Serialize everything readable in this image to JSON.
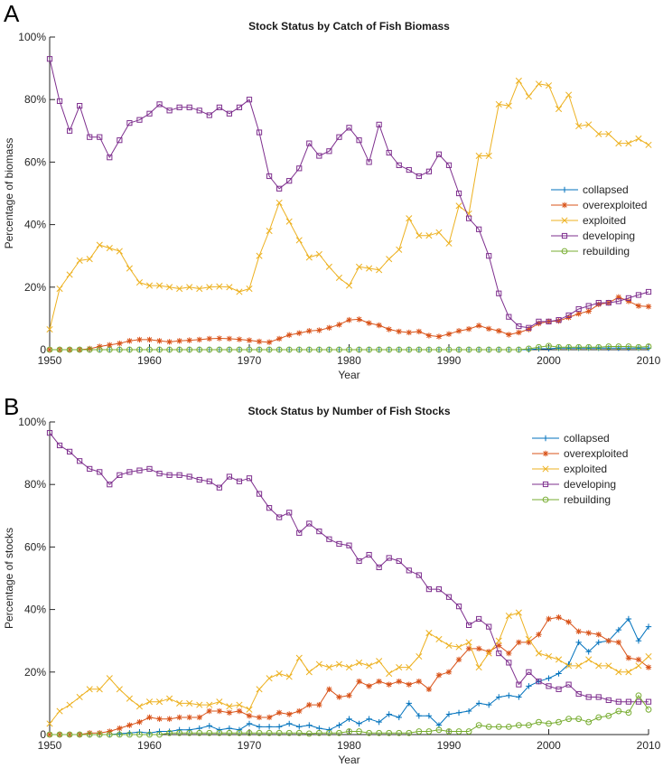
{
  "panel_letters": [
    "A",
    "B"
  ],
  "chart_data": [
    {
      "type": "line",
      "title": "Stock Status by Catch of Fish Biomass",
      "xlabel": "Year",
      "ylabel": "Percentage of biomass",
      "xlim": [
        1950,
        2010
      ],
      "ylim": [
        0,
        100
      ],
      "x_ticks": [
        "1950",
        "1960",
        "1970",
        "1980",
        "1990",
        "2000",
        "2010"
      ],
      "y_ticks": [
        "0",
        "20%",
        "40%",
        "60%",
        "80%",
        "100%"
      ],
      "legend_position": "right-middle",
      "x": [
        1950,
        1951,
        1952,
        1953,
        1954,
        1955,
        1956,
        1957,
        1958,
        1959,
        1960,
        1961,
        1962,
        1963,
        1964,
        1965,
        1966,
        1967,
        1968,
        1969,
        1970,
        1971,
        1972,
        1973,
        1974,
        1975,
        1976,
        1977,
        1978,
        1979,
        1980,
        1981,
        1982,
        1983,
        1984,
        1985,
        1986,
        1987,
        1988,
        1989,
        1990,
        1991,
        1992,
        1993,
        1994,
        1995,
        1996,
        1997,
        1998,
        1999,
        2000,
        2001,
        2002,
        2003,
        2004,
        2005,
        2006,
        2007,
        2008,
        2009,
        2010
      ],
      "series": [
        {
          "name": "collapsed",
          "color": "#0072BD",
          "marker": "plus",
          "values": [
            0,
            0,
            0,
            0,
            0,
            0,
            0,
            0,
            0,
            0,
            0,
            0,
            0,
            0,
            0,
            0,
            0,
            0,
            0,
            0,
            0,
            0,
            0,
            0,
            0,
            0,
            0,
            0,
            0,
            0,
            0,
            0,
            0,
            0,
            0,
            0,
            0,
            0,
            0,
            0,
            0,
            0,
            0,
            0,
            0,
            0,
            0,
            0,
            0,
            0.3,
            0.3,
            0.5,
            0.5,
            0.5,
            0.5,
            0.5,
            0.5,
            0.5,
            0.5,
            0.5,
            0.5
          ]
        },
        {
          "name": "overexploited",
          "color": "#D95319",
          "marker": "star",
          "values": [
            0,
            0,
            0,
            0,
            0.3,
            1,
            1.5,
            2,
            2.8,
            3.2,
            3.2,
            2.8,
            2.5,
            2.8,
            3,
            3.2,
            3.5,
            3.6,
            3.5,
            3.3,
            3,
            2.6,
            2.4,
            3.5,
            4.7,
            5.3,
            6,
            6.2,
            7,
            8,
            9.5,
            9.7,
            8.5,
            7.8,
            6.5,
            5.8,
            5.5,
            5.8,
            4.5,
            4.2,
            5,
            6,
            6.6,
            7.7,
            6.7,
            6,
            4.8,
            5.5,
            6.5,
            8.4,
            9,
            9.2,
            10.3,
            11.5,
            12.3,
            14.5,
            15,
            16.8,
            15.5,
            14,
            13.8
          ]
        },
        {
          "name": "exploited",
          "color": "#EDB120",
          "marker": "cross",
          "values": [
            6.5,
            19.5,
            24,
            28.5,
            29,
            33.5,
            32.5,
            31.5,
            26,
            21.5,
            20.5,
            20.5,
            20,
            19.5,
            20,
            19.5,
            20,
            20.2,
            20,
            18.5,
            19.5,
            30,
            38,
            47,
            41,
            35,
            29.5,
            30.5,
            26.5,
            23,
            20.5,
            26.5,
            26,
            25.5,
            29,
            32,
            42,
            36.5,
            36.5,
            37.5,
            34,
            46,
            43.5,
            62,
            62,
            78.5,
            78,
            86,
            81,
            85,
            84.5,
            77,
            81.5,
            71.5,
            72,
            69,
            69,
            66,
            66,
            67.5,
            65.5
          ]
        },
        {
          "name": "developing",
          "color": "#7E2F8E",
          "marker": "square",
          "values": [
            93,
            79.5,
            70,
            78,
            68,
            68,
            61.5,
            67,
            72.5,
            73.5,
            75.5,
            78.5,
            76.5,
            77.5,
            77.5,
            76.5,
            75,
            77.5,
            75.5,
            77.5,
            80,
            69.5,
            55.5,
            51.5,
            54,
            58,
            66,
            62,
            63.5,
            68,
            71,
            67,
            60,
            72,
            63,
            59,
            57.5,
            55.5,
            57,
            62.5,
            59,
            50,
            42,
            38.5,
            30,
            18,
            10.5,
            7.5,
            7,
            9,
            9,
            9.5,
            11,
            13,
            14,
            15,
            15,
            15.5,
            16.5,
            17.5,
            18.5
          ]
        },
        {
          "name": "rebuilding",
          "color": "#77AC30",
          "marker": "circle",
          "values": [
            0,
            0,
            0,
            0,
            0,
            0,
            0,
            0,
            0,
            0,
            0,
            0,
            0,
            0,
            0,
            0,
            0,
            0,
            0,
            0,
            0,
            0,
            0,
            0,
            0,
            0,
            0,
            0,
            0,
            0,
            0,
            0,
            0,
            0,
            0,
            0,
            0,
            0,
            0,
            0,
            0,
            0,
            0,
            0,
            0,
            0,
            0,
            0,
            0.3,
            0.8,
            1.2,
            0.8,
            0.8,
            0.8,
            0.8,
            0.8,
            1,
            1,
            1,
            0.8,
            1
          ]
        }
      ]
    },
    {
      "type": "line",
      "title": "Stock Status by Number of Fish Stocks",
      "xlabel": "Year",
      "ylabel": "Percentage of stocks",
      "xlim": [
        1950,
        2010
      ],
      "ylim": [
        0,
        100
      ],
      "x_ticks": [
        "1950",
        "1960",
        "1970",
        "1980",
        "1990",
        "2000",
        "2010"
      ],
      "y_ticks": [
        "0",
        "20%",
        "40%",
        "60%",
        "80%",
        "100%"
      ],
      "legend_position": "top-right",
      "x": [
        1950,
        1951,
        1952,
        1953,
        1954,
        1955,
        1956,
        1957,
        1958,
        1959,
        1960,
        1961,
        1962,
        1963,
        1964,
        1965,
        1966,
        1967,
        1968,
        1969,
        1970,
        1971,
        1972,
        1973,
        1974,
        1975,
        1976,
        1977,
        1978,
        1979,
        1980,
        1981,
        1982,
        1983,
        1984,
        1985,
        1986,
        1987,
        1988,
        1989,
        1990,
        1991,
        1992,
        1993,
        1994,
        1995,
        1996,
        1997,
        1998,
        1999,
        2000,
        2001,
        2002,
        2003,
        2004,
        2005,
        2006,
        2007,
        2008,
        2009,
        2010
      ],
      "series": [
        {
          "name": "collapsed",
          "color": "#0072BD",
          "marker": "plus",
          "values": [
            0,
            0,
            0,
            0,
            0,
            0,
            0,
            0.3,
            0.5,
            0.8,
            0.5,
            1,
            1,
            1.5,
            1.5,
            2,
            2.8,
            1.5,
            2,
            1.5,
            3.5,
            2.5,
            2.5,
            2.5,
            3.5,
            2.5,
            3,
            2,
            1.5,
            3,
            5,
            3.5,
            5,
            4,
            6.5,
            5.5,
            10,
            6,
            6,
            3,
            6.5,
            7,
            7.5,
            10,
            9.5,
            12,
            12.5,
            12,
            15.5,
            17,
            18,
            19.5,
            22.5,
            29.5,
            26.5,
            29.5,
            30,
            33.5,
            37,
            30,
            34.5
          ]
        },
        {
          "name": "overexploited",
          "color": "#D95319",
          "marker": "star",
          "values": [
            0,
            0,
            0,
            0,
            0.5,
            0.5,
            1,
            2,
            3,
            4,
            5.5,
            5,
            5,
            5.5,
            5.5,
            5.5,
            7.5,
            7.5,
            7,
            7.5,
            6,
            5.5,
            5.5,
            7,
            6.5,
            7.5,
            9.5,
            9.5,
            14.5,
            12,
            12.5,
            17,
            15.5,
            17,
            16,
            17,
            16,
            17,
            14.5,
            19,
            20,
            24,
            27.5,
            27.5,
            26.5,
            28.5,
            26,
            29.5,
            29.5,
            32,
            37,
            37.5,
            36,
            33,
            32.5,
            32,
            30,
            29.5,
            24.5,
            24,
            21.5
          ]
        },
        {
          "name": "exploited",
          "color": "#EDB120",
          "marker": "cross",
          "values": [
            3.5,
            7.5,
            9.5,
            12,
            14.5,
            14.5,
            18,
            14.5,
            11.5,
            9,
            10.5,
            10.5,
            11.5,
            10,
            10,
            9.5,
            9.5,
            10.5,
            9,
            9.5,
            8,
            14.5,
            18,
            19.5,
            18.5,
            24.5,
            20,
            22.5,
            21.5,
            22.5,
            21.5,
            23,
            22,
            23.5,
            19.5,
            21.5,
            21.5,
            25,
            32.5,
            30.5,
            28.5,
            28,
            29.5,
            21.5,
            26,
            30,
            38,
            39,
            30.5,
            26,
            25,
            24,
            22,
            22,
            24,
            22,
            22,
            20,
            20,
            22,
            25
          ]
        },
        {
          "name": "developing",
          "color": "#7E2F8E",
          "marker": "square",
          "values": [
            96.5,
            92.5,
            90.5,
            87.5,
            85,
            84,
            80,
            83,
            84,
            84.5,
            85,
            83.5,
            83,
            83,
            82.5,
            81.5,
            81,
            79,
            82.5,
            81,
            82,
            77,
            72.5,
            69.5,
            71,
            64.5,
            67.5,
            65,
            62.5,
            61,
            60.5,
            55.5,
            57.5,
            53.5,
            56.5,
            55.5,
            52.5,
            51,
            46.5,
            46.5,
            44,
            41,
            35,
            37,
            34.5,
            26,
            23,
            16,
            20,
            17,
            15.5,
            14.5,
            16,
            13,
            12,
            12,
            11,
            10.5,
            10.5,
            10.5,
            10.5
          ]
        },
        {
          "name": "rebuilding",
          "color": "#77AC30",
          "marker": "circle",
          "values": [
            0,
            0,
            0,
            0,
            0,
            0,
            0,
            0,
            0,
            0,
            0,
            0,
            0.5,
            0.5,
            0.5,
            0.5,
            0.5,
            0.5,
            0.5,
            0.5,
            0.5,
            0.5,
            0.5,
            0.5,
            0.5,
            0.5,
            0.3,
            0.5,
            0.5,
            0.5,
            1,
            1,
            0.5,
            0.5,
            0.5,
            0.5,
            0.5,
            1,
            1,
            1.5,
            1,
            1,
            1,
            3,
            2.5,
            2.5,
            2.5,
            3,
            3,
            4,
            3.5,
            4,
            5,
            5,
            4,
            5.5,
            6,
            7.5,
            7,
            12.5,
            8
          ]
        }
      ]
    }
  ]
}
